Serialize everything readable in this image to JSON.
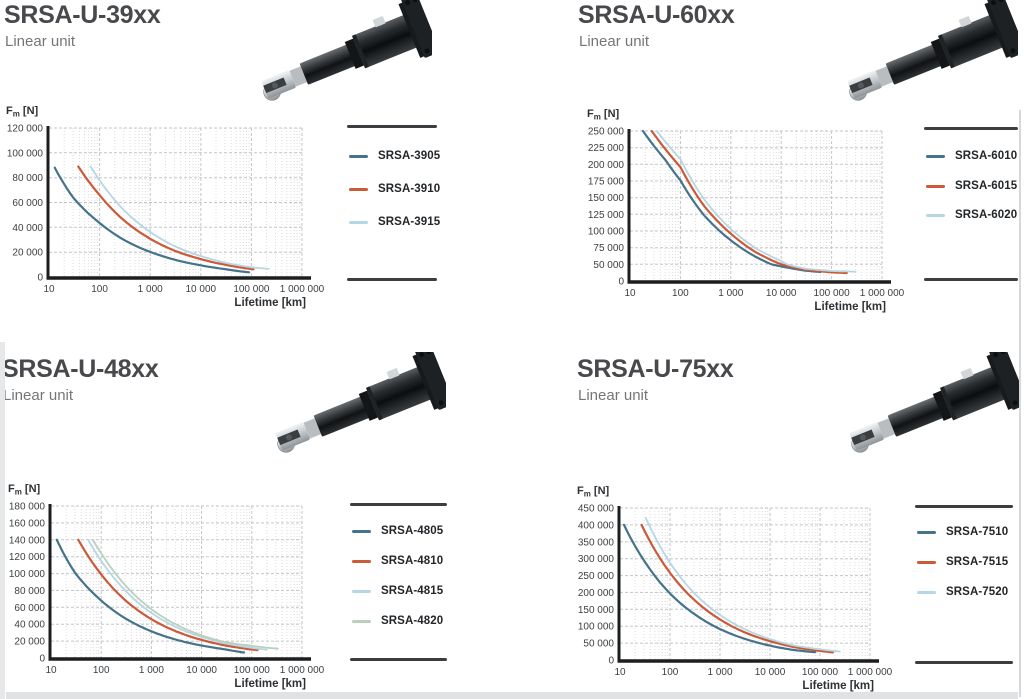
{
  "page": {
    "background": "#ffffff"
  },
  "colors": {
    "axis": "#1b1d1f",
    "grid_major": "#c3c6c9",
    "grid_minor": "#dadcde",
    "legend_bar": "#3a3e41",
    "title_text": "#47494c",
    "subtitle_text": "#737679",
    "tick_text": "#3c3f42",
    "axis_title_text": "#2e3134",
    "series_teal": "#44738a",
    "series_orange": "#cb5a38",
    "series_light_blue": "#b7d6e4",
    "series_light_green": "#b9d0bc"
  },
  "chart_data": [
    {
      "type": "line",
      "title": "SRSA-U-39xx",
      "subtitle": "Linear unit",
      "x_axis_title": "Lifetime [km]",
      "y_axis_title": {
        "symbol": "F",
        "subscript": "m",
        "unit": " [N]"
      },
      "x_scale": "log",
      "x_range": [
        10,
        1000000
      ],
      "x_tick_values": [
        10,
        100,
        1000,
        10000,
        100000,
        1000000
      ],
      "x_tick_labels": [
        "10",
        "100",
        "1 000",
        "10 000",
        "100 000",
        "1 000 000"
      ],
      "y_tick_values": [
        0,
        20000,
        40000,
        60000,
        80000,
        100000,
        120000
      ],
      "y_tick_labels": [
        "0",
        "20 000",
        "40 000",
        "60 000",
        "80 000",
        "100 000",
        "120 000"
      ],
      "grid": true,
      "legend_position": "right",
      "series": [
        {
          "name": "SRSA-3905",
          "color": "#44738a",
          "points": [
            [
              13,
              88000
            ],
            [
              30,
              64000
            ],
            [
              100,
              43500
            ],
            [
              300,
              30000
            ],
            [
              1000,
              20200
            ],
            [
              3000,
              14000
            ],
            [
              10000,
              9400
            ],
            [
              30000,
              6400
            ],
            [
              90000,
              3800
            ]
          ]
        },
        {
          "name": "SRSA-3910",
          "color": "#cb5a38",
          "points": [
            [
              38,
              89000
            ],
            [
              100,
              66000
            ],
            [
              300,
              45800
            ],
            [
              1000,
              30800
            ],
            [
              3000,
              21300
            ],
            [
              10000,
              14400
            ],
            [
              30000,
              9900
            ],
            [
              110000,
              6200
            ]
          ]
        },
        {
          "name": "SRSA-3915",
          "color": "#b7d6e4",
          "points": [
            [
              66,
              89000
            ],
            [
              100,
              78000
            ],
            [
              300,
              54000
            ],
            [
              1000,
              36300
            ],
            [
              3000,
              25000
            ],
            [
              10000,
              16900
            ],
            [
              30000,
              11600
            ],
            [
              100000,
              7800
            ],
            [
              220000,
              6600
            ]
          ]
        }
      ]
    },
    {
      "type": "line",
      "title": "SRSA-U-60xx",
      "subtitle": "Linear unit",
      "x_axis_title": "Lifetime [km]",
      "y_axis_title": {
        "symbol": "F",
        "subscript": "m",
        "unit": " [N]"
      },
      "x_scale": "log",
      "x_range": [
        10,
        1000000
      ],
      "x_tick_values": [
        10,
        100,
        1000,
        10000,
        100000,
        1000000
      ],
      "x_tick_labels": [
        "10",
        "100",
        "1 000",
        "10 000",
        "100 000",
        "1 000 000"
      ],
      "y_tick_values": [
        0,
        50000,
        75000,
        100000,
        125000,
        150000,
        175000,
        200000,
        225000,
        250000
      ],
      "y_tick_labels": [
        "0",
        "50 000",
        "75 000",
        "100 000",
        "125 000",
        "150 000",
        "175 000",
        "200 000",
        "225 000",
        "250 000"
      ],
      "grid": true,
      "legend_position": "right",
      "series": [
        {
          "name": "SRSA-6010",
          "color": "#44738a",
          "points": [
            [
              18,
              250000
            ],
            [
              50,
              207000
            ],
            [
              100,
              176000
            ],
            [
              300,
              123000
            ],
            [
              1000,
              86000
            ],
            [
              3000,
              62000
            ],
            [
              10000,
              44000
            ],
            [
              30000,
              31000
            ],
            [
              60000,
              27000
            ]
          ]
        },
        {
          "name": "SRSA-6015",
          "color": "#cb5a38",
          "points": [
            [
              27,
              250000
            ],
            [
              100,
              196000
            ],
            [
              300,
              137000
            ],
            [
              1000,
              96000
            ],
            [
              3000,
              69000
            ],
            [
              10000,
              50000
            ],
            [
              30000,
              34000
            ],
            [
              100000,
              26000
            ],
            [
              200000,
              24000
            ]
          ]
        },
        {
          "name": "SRSA-6020",
          "color": "#b7d6e4",
          "points": [
            [
              34,
              250000
            ],
            [
              100,
              208000
            ],
            [
              300,
              147000
            ],
            [
              1000,
              103000
            ],
            [
              3000,
              75000
            ],
            [
              10000,
              55000
            ],
            [
              30000,
              37000
            ],
            [
              100000,
              30000
            ],
            [
              300000,
              28000
            ]
          ]
        }
      ]
    },
    {
      "type": "line",
      "title": "SRSA-U-48xx",
      "subtitle": "Linear unit",
      "x_axis_title": "Lifetime [km]",
      "y_axis_title": {
        "symbol": "F",
        "subscript": "m",
        "unit": " [N]"
      },
      "x_scale": "log",
      "x_range": [
        10,
        1000000
      ],
      "x_tick_values": [
        10,
        100,
        1000,
        10000,
        100000,
        1000000
      ],
      "x_tick_labels": [
        "10",
        "100",
        "1 000",
        "10 000",
        "100 000",
        "1 000 000"
      ],
      "y_tick_values": [
        0,
        20000,
        40000,
        60000,
        80000,
        100000,
        120000,
        140000,
        160000,
        180000
      ],
      "y_tick_labels": [
        "0",
        "20 000",
        "40 000",
        "60 000",
        "80 000",
        "100 000",
        "120 000",
        "140 000",
        "160 000",
        "180 000"
      ],
      "grid": true,
      "legend_position": "right",
      "series": [
        {
          "name": "SRSA-4805",
          "color": "#44738a",
          "points": [
            [
              13,
              140000
            ],
            [
              30,
              101000
            ],
            [
              100,
              68000
            ],
            [
              300,
              47000
            ],
            [
              1000,
              31600
            ],
            [
              3000,
              21900
            ],
            [
              10000,
              14800
            ],
            [
              30000,
              10200
            ],
            [
              70000,
              6500
            ]
          ]
        },
        {
          "name": "SRSA-4810",
          "color": "#cb5a38",
          "points": [
            [
              35,
              140000
            ],
            [
              100,
              99000
            ],
            [
              300,
              68500
            ],
            [
              1000,
              46000
            ],
            [
              3000,
              31900
            ],
            [
              10000,
              21400
            ],
            [
              30000,
              14800
            ],
            [
              130000,
              9300
            ]
          ]
        },
        {
          "name": "SRSA-4815",
          "color": "#b7d6e4",
          "points": [
            [
              55,
              140000
            ],
            [
              100,
              115000
            ],
            [
              300,
              80000
            ],
            [
              1000,
              53400
            ],
            [
              3000,
              37000
            ],
            [
              10000,
              24900
            ],
            [
              30000,
              17200
            ],
            [
              200000,
              9800
            ]
          ]
        },
        {
          "name": "SRSA-4820",
          "color": "#b9d0bc",
          "points": [
            [
              68,
              140000
            ],
            [
              100,
              124000
            ],
            [
              300,
              86300
            ],
            [
              1000,
              57800
            ],
            [
              3000,
              40100
            ],
            [
              10000,
              26900
            ],
            [
              30000,
              18700
            ],
            [
              330000,
              11000
            ]
          ]
        }
      ]
    },
    {
      "type": "line",
      "title": "SRSA-U-75xx",
      "subtitle": "Linear unit",
      "x_axis_title": "Lifetime [km]",
      "y_axis_title": {
        "symbol": "F",
        "subscript": "m",
        "unit": " [N]"
      },
      "x_scale": "log",
      "x_range": [
        10,
        1000000
      ],
      "x_tick_values": [
        10,
        100,
        1000,
        10000,
        100000,
        1000000
      ],
      "x_tick_labels": [
        "10",
        "100",
        "1 000",
        "10 000",
        "100 000",
        "1 000 000"
      ],
      "y_tick_values": [
        0,
        50000,
        100000,
        150000,
        200000,
        250000,
        300000,
        350000,
        400000,
        450000
      ],
      "y_tick_labels": [
        "0",
        "50 000",
        "100 000",
        "150 000",
        "200 000",
        "250 000",
        "300 000",
        "350 000",
        "400 000",
        "450 000"
      ],
      "grid": true,
      "legend_position": "right",
      "series": [
        {
          "name": "SRSA-7510",
          "color": "#44738a",
          "points": [
            [
              12,
              400000
            ],
            [
              30,
              295000
            ],
            [
              100,
              197000
            ],
            [
              300,
              137000
            ],
            [
              1000,
              91600
            ],
            [
              3000,
              63500
            ],
            [
              10000,
              42600
            ],
            [
              30000,
              29500
            ],
            [
              80000,
              23000
            ]
          ]
        },
        {
          "name": "SRSA-7515",
          "color": "#cb5a38",
          "points": [
            [
              27,
              400000
            ],
            [
              100,
              258000
            ],
            [
              300,
              179000
            ],
            [
              1000,
              120000
            ],
            [
              3000,
              83000
            ],
            [
              10000,
              55700
            ],
            [
              30000,
              38600
            ],
            [
              180000,
              22500
            ]
          ]
        },
        {
          "name": "SRSA-7520",
          "color": "#b7d6e4",
          "points": [
            [
              33,
              420000
            ],
            [
              100,
              288000
            ],
            [
              300,
              199000
            ],
            [
              1000,
              133500
            ],
            [
              3000,
              92500
            ],
            [
              10000,
              62000
            ],
            [
              30000,
              42800
            ],
            [
              250000,
              25000
            ]
          ]
        }
      ]
    }
  ]
}
